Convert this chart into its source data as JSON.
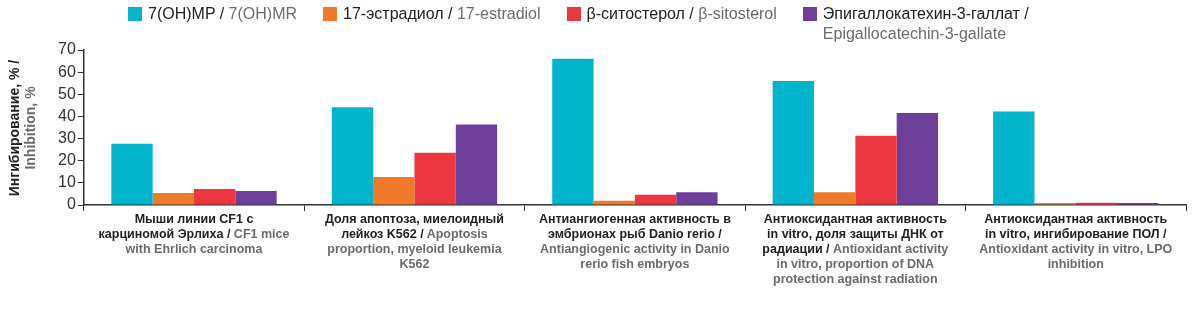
{
  "chart_data": {
    "type": "bar",
    "ylabel": "Ингибирование, % / Inhibition, %",
    "categories": [
      "Мыши линии CF1 с карциномой Эрлиха / CF1 mice with Ehrlich carcinoma",
      "Доля апоптоза, миелоидный лейкоз K562 / Apoptosis proportion, myeloid leukemia K562",
      "Антиангиогенная активность в эмбрионах рыб Danio rerio / Antiangiogenic activity in Danio rerio fish embryos",
      "Антиоксидантная активность in vitro, доля защиты ДНК от радиации / Antioxidant activity in vitro, proportion of DNA protection against radiation",
      "Антиоксидантная активность in vitro, ингибирование ПОЛ / Antioxidant activity in vitro, LPO inhibition"
    ],
    "series": [
      {
        "name": "7(OH)MP / 7(OH)MR",
        "color": "#00b4cc",
        "values": [
          27.7,
          44.1,
          66,
          56,
          42.2
        ]
      },
      {
        "name": "17-эстрадиол / 17-estradiol",
        "color": "#f07a2a",
        "values": [
          5.4,
          12.6,
          1.9,
          5.8,
          0.5
        ]
      },
      {
        "name": "β-ситостерол / β-sitosterol",
        "color": "#ec3640",
        "values": [
          7.2,
          23.6,
          4.6,
          31.3,
          1
        ]
      },
      {
        "name": "Эпигаллокатехин-3-галлат / Epigallocatechin-3-gallate",
        "color": "#6d3f98",
        "values": [
          6.3,
          36.3,
          5.8,
          41.5,
          0.5
        ]
      }
    ],
    "ylim": [
      0,
      70
    ],
    "yticks": [
      0,
      10,
      20,
      30,
      40,
      50,
      60,
      70
    ],
    "grid": false,
    "legend": "top"
  }
}
